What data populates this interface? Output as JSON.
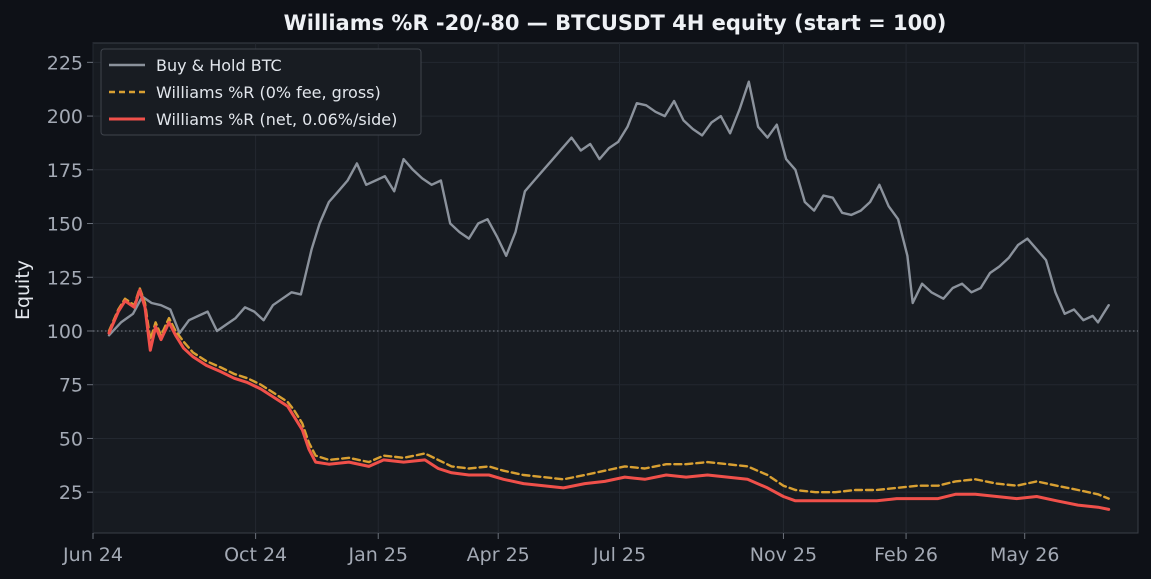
{
  "chart_data": {
    "type": "line",
    "title": "Williams %R -20/-80 — BTCUSDT 4H equity (start = 100)",
    "xlabel": "",
    "ylabel": "Equity",
    "x_range": [
      "2024-06-01",
      "2026-07-25"
    ],
    "ylim": [
      6,
      234
    ],
    "x_ticks": [
      {
        "date": "2024-06-01",
        "label": "Jun 24"
      },
      {
        "date": "2024-10-01",
        "label": "Oct 24"
      },
      {
        "date": "2025-01-01",
        "label": "Jan 25"
      },
      {
        "date": "2025-04-01",
        "label": "Apr 25"
      },
      {
        "date": "2025-07-01",
        "label": "Jul 25"
      },
      {
        "date": "2025-11-01",
        "label": "Nov 25"
      },
      {
        "date": "2026-02-01",
        "label": "Feb 26"
      },
      {
        "date": "2026-05-01",
        "label": "May 26"
      }
    ],
    "y_ticks": [
      25,
      50,
      75,
      100,
      125,
      150,
      175,
      200,
      225
    ],
    "grid": true,
    "legend_position": "top-left",
    "reference_line": {
      "y": 100,
      "style": "dotted"
    },
    "series": [
      {
        "name": "Buy & Hold BTC",
        "color": "#8b929c",
        "style": "solid",
        "points": [
          [
            "2024-06-13",
            98
          ],
          [
            "2024-06-22",
            104
          ],
          [
            "2024-07-01",
            108
          ],
          [
            "2024-07-08",
            116
          ],
          [
            "2024-07-15",
            113
          ],
          [
            "2024-07-22",
            112
          ],
          [
            "2024-07-29",
            110
          ],
          [
            "2024-08-05",
            99
          ],
          [
            "2024-08-12",
            105
          ],
          [
            "2024-08-19",
            107
          ],
          [
            "2024-08-26",
            109
          ],
          [
            "2024-09-02",
            100
          ],
          [
            "2024-09-09",
            103
          ],
          [
            "2024-09-16",
            106
          ],
          [
            "2024-09-23",
            111
          ],
          [
            "2024-09-30",
            109
          ],
          [
            "2024-10-07",
            105
          ],
          [
            "2024-10-14",
            112
          ],
          [
            "2024-10-21",
            115
          ],
          [
            "2024-10-28",
            118
          ],
          [
            "2024-11-04",
            117
          ],
          [
            "2024-11-12",
            138
          ],
          [
            "2024-11-18",
            150
          ],
          [
            "2024-11-25",
            160
          ],
          [
            "2024-12-02",
            165
          ],
          [
            "2024-12-09",
            170
          ],
          [
            "2024-12-16",
            178
          ],
          [
            "2024-12-23",
            168
          ],
          [
            "2024-12-30",
            170
          ],
          [
            "2025-01-06",
            172
          ],
          [
            "2025-01-13",
            165
          ],
          [
            "2025-01-20",
            180
          ],
          [
            "2025-01-27",
            175
          ],
          [
            "2025-02-03",
            171
          ],
          [
            "2025-02-10",
            168
          ],
          [
            "2025-02-17",
            170
          ],
          [
            "2025-02-24",
            150
          ],
          [
            "2025-03-03",
            146
          ],
          [
            "2025-03-10",
            143
          ],
          [
            "2025-03-17",
            150
          ],
          [
            "2025-03-24",
            152
          ],
          [
            "2025-03-31",
            144
          ],
          [
            "2025-04-07",
            135
          ],
          [
            "2025-04-14",
            146
          ],
          [
            "2025-04-21",
            165
          ],
          [
            "2025-04-28",
            170
          ],
          [
            "2025-05-05",
            175
          ],
          [
            "2025-05-12",
            180
          ],
          [
            "2025-05-19",
            185
          ],
          [
            "2025-05-26",
            190
          ],
          [
            "2025-06-02",
            184
          ],
          [
            "2025-06-09",
            187
          ],
          [
            "2025-06-16",
            180
          ],
          [
            "2025-06-23",
            185
          ],
          [
            "2025-06-30",
            188
          ],
          [
            "2025-07-07",
            195
          ],
          [
            "2025-07-14",
            206
          ],
          [
            "2025-07-21",
            205
          ],
          [
            "2025-07-28",
            202
          ],
          [
            "2025-08-04",
            200
          ],
          [
            "2025-08-11",
            207
          ],
          [
            "2025-08-18",
            198
          ],
          [
            "2025-08-25",
            194
          ],
          [
            "2025-09-01",
            191
          ],
          [
            "2025-09-08",
            197
          ],
          [
            "2025-09-15",
            200
          ],
          [
            "2025-09-22",
            192
          ],
          [
            "2025-09-29",
            203
          ],
          [
            "2025-10-06",
            216
          ],
          [
            "2025-10-13",
            195
          ],
          [
            "2025-10-20",
            190
          ],
          [
            "2025-10-27",
            196
          ],
          [
            "2025-11-03",
            180
          ],
          [
            "2025-11-10",
            175
          ],
          [
            "2025-11-17",
            160
          ],
          [
            "2025-11-24",
            156
          ],
          [
            "2025-12-01",
            163
          ],
          [
            "2025-12-08",
            162
          ],
          [
            "2025-12-15",
            155
          ],
          [
            "2025-12-22",
            154
          ],
          [
            "2025-12-29",
            156
          ],
          [
            "2026-01-05",
            160
          ],
          [
            "2026-01-12",
            168
          ],
          [
            "2026-01-19",
            158
          ],
          [
            "2026-01-26",
            152
          ],
          [
            "2026-02-02",
            135
          ],
          [
            "2026-02-06",
            113
          ],
          [
            "2026-02-13",
            122
          ],
          [
            "2026-02-20",
            118
          ],
          [
            "2026-03-01",
            115
          ],
          [
            "2026-03-08",
            120
          ],
          [
            "2026-03-15",
            122
          ],
          [
            "2026-03-22",
            118
          ],
          [
            "2026-03-29",
            120
          ],
          [
            "2026-04-05",
            127
          ],
          [
            "2026-04-12",
            130
          ],
          [
            "2026-04-19",
            134
          ],
          [
            "2026-04-26",
            140
          ],
          [
            "2026-05-03",
            143
          ],
          [
            "2026-05-10",
            138
          ],
          [
            "2026-05-17",
            133
          ],
          [
            "2026-05-24",
            118
          ],
          [
            "2026-05-31",
            108
          ],
          [
            "2026-06-07",
            110
          ],
          [
            "2026-06-14",
            105
          ],
          [
            "2026-06-21",
            107
          ],
          [
            "2026-06-25",
            104
          ],
          [
            "2026-06-29",
            108
          ],
          [
            "2026-07-03",
            112
          ]
        ]
      },
      {
        "name": "Williams %R (0% fee, gross)",
        "color": "#d9a032",
        "style": "dashed",
        "points": [
          [
            "2024-06-13",
            100
          ],
          [
            "2024-06-20",
            110
          ],
          [
            "2024-06-25",
            115
          ],
          [
            "2024-07-02",
            112
          ],
          [
            "2024-07-06",
            120
          ],
          [
            "2024-07-10",
            113
          ],
          [
            "2024-07-14",
            96
          ],
          [
            "2024-07-18",
            104
          ],
          [
            "2024-07-22",
            98
          ],
          [
            "2024-07-28",
            106
          ],
          [
            "2024-08-02",
            100
          ],
          [
            "2024-08-08",
            95
          ],
          [
            "2024-08-15",
            90
          ],
          [
            "2024-08-25",
            86
          ],
          [
            "2024-09-05",
            83
          ],
          [
            "2024-09-15",
            80
          ],
          [
            "2024-09-25",
            78
          ],
          [
            "2024-10-05",
            75
          ],
          [
            "2024-10-15",
            71
          ],
          [
            "2024-10-25",
            67
          ],
          [
            "2024-10-30",
            63
          ],
          [
            "2024-11-05",
            57
          ],
          [
            "2024-11-10",
            48
          ],
          [
            "2024-11-15",
            42
          ],
          [
            "2024-11-25",
            40
          ],
          [
            "2024-12-10",
            41
          ],
          [
            "2024-12-25",
            39
          ],
          [
            "2025-01-05",
            42
          ],
          [
            "2025-01-20",
            41
          ],
          [
            "2025-02-05",
            43
          ],
          [
            "2025-02-15",
            40
          ],
          [
            "2025-02-25",
            37
          ],
          [
            "2025-03-10",
            36
          ],
          [
            "2025-03-25",
            37
          ],
          [
            "2025-04-05",
            35
          ],
          [
            "2025-04-20",
            33
          ],
          [
            "2025-05-05",
            32
          ],
          [
            "2025-05-20",
            31
          ],
          [
            "2025-06-05",
            33
          ],
          [
            "2025-06-20",
            35
          ],
          [
            "2025-07-05",
            37
          ],
          [
            "2025-07-20",
            36
          ],
          [
            "2025-08-05",
            38
          ],
          [
            "2025-08-20",
            38
          ],
          [
            "2025-09-05",
            39
          ],
          [
            "2025-09-20",
            38
          ],
          [
            "2025-10-05",
            37
          ],
          [
            "2025-10-20",
            33
          ],
          [
            "2025-11-01",
            28
          ],
          [
            "2025-11-10",
            26
          ],
          [
            "2025-11-25",
            25
          ],
          [
            "2025-12-10",
            25
          ],
          [
            "2025-12-25",
            26
          ],
          [
            "2026-01-10",
            26
          ],
          [
            "2026-01-25",
            27
          ],
          [
            "2026-02-10",
            28
          ],
          [
            "2026-02-25",
            28
          ],
          [
            "2026-03-10",
            30
          ],
          [
            "2026-03-25",
            31
          ],
          [
            "2026-04-10",
            29
          ],
          [
            "2026-04-25",
            28
          ],
          [
            "2026-05-10",
            30
          ],
          [
            "2026-05-25",
            28
          ],
          [
            "2026-06-10",
            26
          ],
          [
            "2026-06-25",
            24
          ],
          [
            "2026-07-03",
            22
          ]
        ]
      },
      {
        "name": "Williams %R (net, 0.06%/side)",
        "color": "#f0504a",
        "style": "solid",
        "points": [
          [
            "2024-06-13",
            99
          ],
          [
            "2024-06-20",
            109
          ],
          [
            "2024-06-25",
            114
          ],
          [
            "2024-07-02",
            111
          ],
          [
            "2024-07-06",
            119
          ],
          [
            "2024-07-10",
            111
          ],
          [
            "2024-07-14",
            91
          ],
          [
            "2024-07-18",
            102
          ],
          [
            "2024-07-22",
            96
          ],
          [
            "2024-07-28",
            104
          ],
          [
            "2024-08-02",
            98
          ],
          [
            "2024-08-08",
            92
          ],
          [
            "2024-08-15",
            88
          ],
          [
            "2024-08-25",
            84
          ],
          [
            "2024-09-05",
            81
          ],
          [
            "2024-09-15",
            78
          ],
          [
            "2024-09-25",
            76
          ],
          [
            "2024-10-05",
            73
          ],
          [
            "2024-10-15",
            69
          ],
          [
            "2024-10-25",
            65
          ],
          [
            "2024-10-30",
            60
          ],
          [
            "2024-11-05",
            54
          ],
          [
            "2024-11-10",
            45
          ],
          [
            "2024-11-15",
            39
          ],
          [
            "2024-11-25",
            38
          ],
          [
            "2024-12-10",
            39
          ],
          [
            "2024-12-25",
            37
          ],
          [
            "2025-01-05",
            40
          ],
          [
            "2025-01-20",
            39
          ],
          [
            "2025-02-05",
            40
          ],
          [
            "2025-02-15",
            36
          ],
          [
            "2025-02-25",
            34
          ],
          [
            "2025-03-10",
            33
          ],
          [
            "2025-03-25",
            33
          ],
          [
            "2025-04-05",
            31
          ],
          [
            "2025-04-20",
            29
          ],
          [
            "2025-05-05",
            28
          ],
          [
            "2025-05-20",
            27
          ],
          [
            "2025-06-05",
            29
          ],
          [
            "2025-06-20",
            30
          ],
          [
            "2025-07-05",
            32
          ],
          [
            "2025-07-20",
            31
          ],
          [
            "2025-08-05",
            33
          ],
          [
            "2025-08-20",
            32
          ],
          [
            "2025-09-05",
            33
          ],
          [
            "2025-09-20",
            32
          ],
          [
            "2025-10-05",
            31
          ],
          [
            "2025-10-20",
            27
          ],
          [
            "2025-11-01",
            23
          ],
          [
            "2025-11-10",
            21
          ],
          [
            "2025-11-25",
            21
          ],
          [
            "2025-12-10",
            21
          ],
          [
            "2025-12-25",
            21
          ],
          [
            "2026-01-10",
            21
          ],
          [
            "2026-01-25",
            22
          ],
          [
            "2026-02-10",
            22
          ],
          [
            "2026-02-25",
            22
          ],
          [
            "2026-03-10",
            24
          ],
          [
            "2026-03-25",
            24
          ],
          [
            "2026-04-10",
            23
          ],
          [
            "2026-04-25",
            22
          ],
          [
            "2026-05-10",
            23
          ],
          [
            "2026-05-25",
            21
          ],
          [
            "2026-06-10",
            19
          ],
          [
            "2026-06-25",
            18
          ],
          [
            "2026-07-03",
            17
          ]
        ]
      }
    ]
  }
}
